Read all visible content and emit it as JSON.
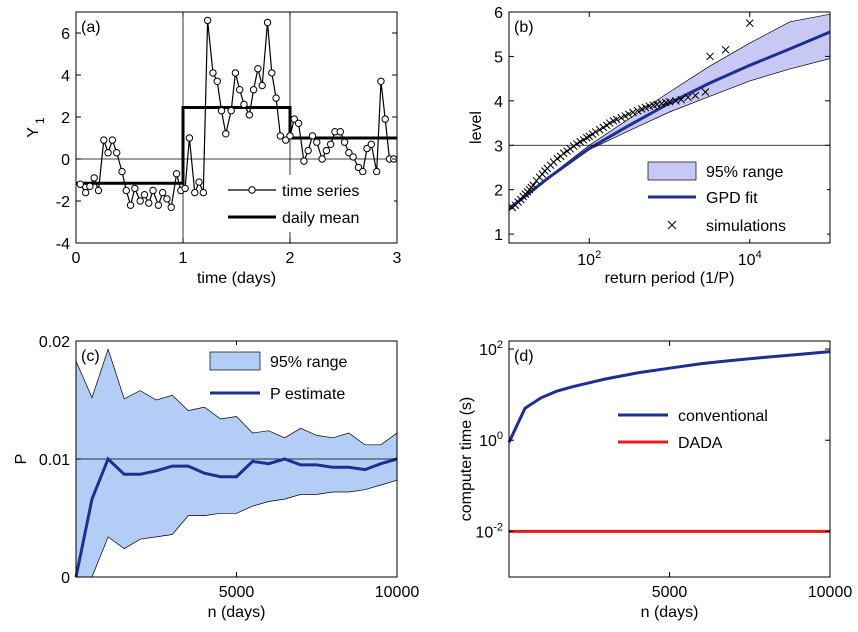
{
  "chart_data": [
    {
      "panel_label": "(a)",
      "type": "line",
      "xlabel": "time (days)",
      "ylabel": "Y_1",
      "ylabel_main": "Y",
      "ylabel_sub": "1",
      "xlim": [
        0,
        3
      ],
      "ylim": [
        -4,
        7
      ],
      "xticks": [
        0,
        1,
        2,
        3
      ],
      "yticks": [
        -4,
        -2,
        0,
        2,
        4,
        6
      ],
      "grid": "off",
      "legend_position": "bottom-right",
      "reference_lines": {
        "y": [
          0
        ],
        "x": [
          1,
          2
        ]
      },
      "series": [
        {
          "name": "time series",
          "color": "#000000",
          "marker": "circle",
          "x": [
            0.04,
            0.09,
            0.13,
            0.17,
            0.21,
            0.26,
            0.3,
            0.34,
            0.38,
            0.43,
            0.47,
            0.51,
            0.55,
            0.6,
            0.64,
            0.68,
            0.72,
            0.77,
            0.81,
            0.85,
            0.89,
            0.94,
            0.98,
            1.02,
            1.06,
            1.11,
            1.15,
            1.19,
            1.23,
            1.28,
            1.32,
            1.36,
            1.4,
            1.45,
            1.49,
            1.53,
            1.57,
            1.62,
            1.66,
            1.7,
            1.74,
            1.79,
            1.83,
            1.87,
            1.91,
            1.96,
            2.0,
            2.04,
            2.08,
            2.13,
            2.17,
            2.21,
            2.25,
            2.3,
            2.34,
            2.38,
            2.42,
            2.47,
            2.51,
            2.55,
            2.59,
            2.64,
            2.68,
            2.72,
            2.76,
            2.81,
            2.85,
            2.89,
            2.93,
            2.97
          ],
          "y": [
            -1.2,
            -1.6,
            -1.3,
            -0.9,
            -1.5,
            0.9,
            0.3,
            0.9,
            0.3,
            -0.6,
            -1.5,
            -2.2,
            -1.4,
            -2.0,
            -1.7,
            -2.1,
            -1.5,
            -2.2,
            -1.6,
            -1.9,
            -2.3,
            -0.7,
            -1.5,
            -1.4,
            1.0,
            -1.6,
            -1.1,
            -1.6,
            6.6,
            4.1,
            3.7,
            2.3,
            1.2,
            2.3,
            4.1,
            3.3,
            2.6,
            2.1,
            3.3,
            4.3,
            3.5,
            6.5,
            4.1,
            2.9,
            1.1,
            0.9,
            1.1,
            1.9,
            1.7,
            -0.1,
            0.4,
            1.1,
            0.8,
            0.0,
            0.4,
            0.7,
            1.3,
            1.3,
            0.8,
            0.3,
            0.1,
            -0.4,
            -0.6,
            0.5,
            0.7,
            -0.6,
            3.7,
            1.9,
            0.0,
            0.0
          ]
        },
        {
          "name": "daily mean",
          "color": "#000000",
          "x": [
            0,
            1,
            1,
            2,
            2,
            3
          ],
          "y": [
            -1.15,
            -1.15,
            2.45,
            2.45,
            1.0,
            1.0
          ]
        }
      ]
    },
    {
      "panel_label": "(b)",
      "type": "line",
      "xscale": "log",
      "xlabel": "return period (1/P)",
      "ylabel": "level",
      "xlim": [
        10,
        100000
      ],
      "ylim": [
        0.8,
        6
      ],
      "xticks": [
        {
          "value": 100,
          "base": "10",
          "exp": "2"
        },
        {
          "value": 10000,
          "base": "10",
          "exp": "4"
        }
      ],
      "yticks": [
        1,
        2,
        3,
        4,
        5,
        6
      ],
      "grid": "off",
      "legend_position": "right",
      "reference_lines": {
        "y": [
          3
        ]
      },
      "series": [
        {
          "name": "95% range",
          "kind": "band",
          "fill": "#c8c8f4",
          "x": [
            10,
            31.6,
            100,
            316,
            1000,
            3162,
            10000,
            31623,
            100000
          ],
          "lower": [
            1.55,
            2.25,
            2.9,
            3.33,
            3.75,
            4.1,
            4.45,
            4.72,
            4.95
          ],
          "upper": [
            1.6,
            2.3,
            3.0,
            3.6,
            4.2,
            4.78,
            5.3,
            5.78,
            5.95
          ]
        },
        {
          "name": "GPD fit",
          "kind": "line",
          "color": "#1f2f8f",
          "x": [
            10,
            31.6,
            100,
            316,
            1000,
            3162,
            10000,
            31623,
            100000
          ],
          "y": [
            1.57,
            2.28,
            2.93,
            3.45,
            3.95,
            4.4,
            4.8,
            5.17,
            5.55
          ]
        },
        {
          "name": "simulations",
          "kind": "scatter",
          "marker": "x",
          "color": "#000000",
          "x": [
            11,
            12,
            13,
            14,
            15,
            16,
            17,
            18,
            19,
            20,
            22,
            24,
            26,
            28,
            30,
            33,
            36,
            40,
            44,
            48,
            53,
            58,
            64,
            70,
            77,
            85,
            93,
            100,
            110,
            120,
            135,
            150,
            165,
            180,
            200,
            220,
            250,
            280,
            310,
            350,
            400,
            450,
            500,
            560,
            630,
            700,
            800,
            900,
            1000,
            1200,
            1400,
            1700,
            2100,
            2800,
            3200,
            5000,
            10000
          ],
          "y": [
            1.6,
            1.65,
            1.72,
            1.78,
            1.85,
            1.9,
            1.95,
            2.0,
            2.05,
            2.1,
            2.2,
            2.28,
            2.35,
            2.42,
            2.48,
            2.55,
            2.62,
            2.7,
            2.75,
            2.82,
            2.87,
            2.92,
            2.98,
            3.03,
            3.08,
            3.12,
            3.17,
            3.2,
            3.25,
            3.3,
            3.35,
            3.4,
            3.45,
            3.5,
            3.55,
            3.58,
            3.62,
            3.66,
            3.7,
            3.74,
            3.78,
            3.82,
            3.85,
            3.88,
            3.9,
            3.92,
            3.94,
            3.96,
            3.98,
            4.0,
            4.03,
            4.08,
            4.12,
            4.2,
            5.0,
            5.15,
            5.75
          ]
        }
      ]
    },
    {
      "panel_label": "(c)",
      "type": "area",
      "xlabel": "n (days)",
      "ylabel": "P",
      "xlim": [
        0,
        10000
      ],
      "ylim": [
        0,
        0.02
      ],
      "xticks": [
        5000,
        10000
      ],
      "yticks": [
        {
          "value": 0,
          "label": "0"
        },
        {
          "value": 0.01,
          "label": "0.01"
        },
        {
          "value": 0.02,
          "label": "0.02"
        }
      ],
      "grid": "off",
      "legend_position": "top-right",
      "reference_lines": {
        "y": [
          0.01
        ]
      },
      "series": [
        {
          "name": "95% range",
          "kind": "band",
          "fill": "#b4cdf7",
          "x": [
            0,
            500,
            1000,
            1500,
            2000,
            2500,
            3000,
            3500,
            4000,
            4500,
            5000,
            5500,
            6000,
            6500,
            7000,
            7500,
            8000,
            8500,
            9000,
            9500,
            10000
          ],
          "lower": [
            0,
            0,
            0.0034,
            0.0024,
            0.0032,
            0.0034,
            0.0036,
            0.0052,
            0.0052,
            0.0054,
            0.0054,
            0.006,
            0.0064,
            0.0066,
            0.007,
            0.007,
            0.0072,
            0.0072,
            0.0074,
            0.0078,
            0.0082
          ],
          "upper": [
            0.0183,
            0.0152,
            0.0193,
            0.0151,
            0.0158,
            0.015,
            0.0154,
            0.0141,
            0.0144,
            0.0134,
            0.0136,
            0.0122,
            0.0124,
            0.0118,
            0.0126,
            0.012,
            0.0118,
            0.0122,
            0.0112,
            0.0112,
            0.0122
          ]
        },
        {
          "name": "P estimate",
          "kind": "line",
          "color": "#1f2f8f",
          "x": [
            0,
            500,
            1000,
            1500,
            2000,
            2500,
            3000,
            3500,
            4000,
            4500,
            5000,
            5500,
            6000,
            6500,
            7000,
            7500,
            8000,
            8500,
            9000,
            9500,
            10000
          ],
          "y": [
            0,
            0.0066,
            0.01,
            0.0087,
            0.0087,
            0.009,
            0.0094,
            0.0094,
            0.0088,
            0.0085,
            0.0085,
            0.0098,
            0.0096,
            0.01,
            0.0095,
            0.0095,
            0.0093,
            0.0093,
            0.0091,
            0.0096,
            0.01
          ]
        }
      ]
    },
    {
      "panel_label": "(d)",
      "type": "line",
      "yscale": "log",
      "xlabel": "n (days)",
      "ylabel": "computer time (s)",
      "xlim": [
        0,
        10000
      ],
      "ylim": [
        0.001,
        150
      ],
      "xticks": [
        5000,
        10000
      ],
      "yticks": [
        {
          "value": 0.01,
          "base": "10",
          "exp": "-2"
        },
        {
          "value": 1,
          "base": "10",
          "exp": "0"
        },
        {
          "value": 100,
          "base": "10",
          "exp": "2"
        }
      ],
      "grid": "off",
      "legend_position": "center",
      "series": [
        {
          "name": "conventional",
          "color": "#1f2f8f",
          "x": [
            0,
            500,
            1000,
            1500,
            2000,
            3000,
            4000,
            5000,
            6000,
            7000,
            8000,
            9000,
            10000
          ],
          "y": [
            0.9,
            5.0,
            8.5,
            12.0,
            15.0,
            22.0,
            30.0,
            38.0,
            48.0,
            57.0,
            66.0,
            76.0,
            88.0
          ]
        },
        {
          "name": "DADA",
          "color": "#e41a1c",
          "x": [
            0,
            10000
          ],
          "y": [
            0.01,
            0.01
          ]
        }
      ]
    }
  ]
}
